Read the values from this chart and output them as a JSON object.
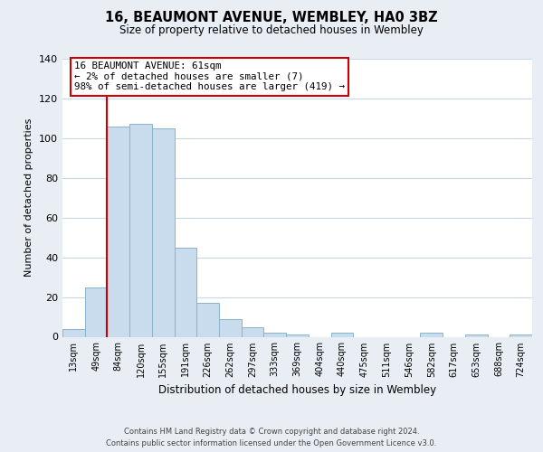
{
  "title": "16, BEAUMONT AVENUE, WEMBLEY, HA0 3BZ",
  "subtitle": "Size of property relative to detached houses in Wembley",
  "xlabel": "Distribution of detached houses by size in Wembley",
  "ylabel": "Number of detached properties",
  "bar_color": "#c8dced",
  "bar_edge_color": "#8ab4cc",
  "background_color": "#e8eef4",
  "plot_bg_color": "#ffffff",
  "grid_color": "#c8d8e8",
  "bin_labels": [
    "13sqm",
    "49sqm",
    "84sqm",
    "120sqm",
    "155sqm",
    "191sqm",
    "226sqm",
    "262sqm",
    "297sqm",
    "333sqm",
    "369sqm",
    "404sqm",
    "440sqm",
    "475sqm",
    "511sqm",
    "546sqm",
    "582sqm",
    "617sqm",
    "653sqm",
    "688sqm",
    "724sqm"
  ],
  "bar_heights": [
    4,
    25,
    106,
    107,
    105,
    45,
    17,
    9,
    5,
    2,
    1,
    0,
    2,
    0,
    0,
    0,
    2,
    0,
    1,
    0,
    1
  ],
  "ylim": [
    0,
    140
  ],
  "yticks": [
    0,
    20,
    40,
    60,
    80,
    100,
    120,
    140
  ],
  "vline_x": 1.5,
  "vline_color": "#cc0000",
  "annotation_text": "16 BEAUMONT AVENUE: 61sqm\n← 2% of detached houses are smaller (7)\n98% of semi-detached houses are larger (419) →",
  "annotation_box_color": "#ffffff",
  "annotation_box_edge": "#cc0000",
  "footer_line1": "Contains HM Land Registry data © Crown copyright and database right 2024.",
  "footer_line2": "Contains public sector information licensed under the Open Government Licence v3.0."
}
